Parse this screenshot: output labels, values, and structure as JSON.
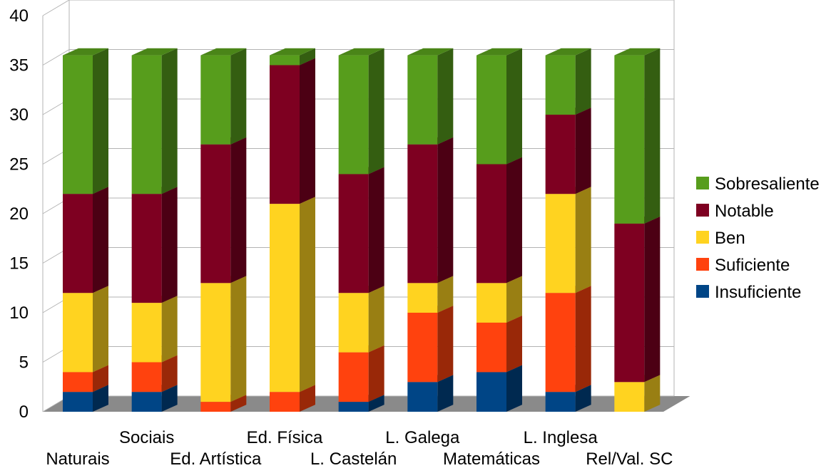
{
  "chart_data": {
    "type": "bar",
    "stacked": true,
    "three_d": true,
    "categories": [
      "Naturais",
      "Sociais",
      "Ed. Artística",
      "Ed. Física",
      "L. Castelán",
      "L. Galega",
      "Matemáticas",
      "L. Inglesa",
      "Rel/Val. SC"
    ],
    "series": [
      {
        "name": "Insuficiente",
        "color": "#004586",
        "values": [
          2,
          2,
          0,
          0,
          1,
          3,
          4,
          2,
          0
        ]
      },
      {
        "name": "Suficiente",
        "color": "#ff420e",
        "values": [
          2,
          3,
          1,
          2,
          5,
          7,
          5,
          10,
          0
        ]
      },
      {
        "name": "Ben",
        "color": "#ffd320",
        "values": [
          8,
          6,
          12,
          19,
          6,
          3,
          4,
          10,
          3
        ]
      },
      {
        "name": "Notable",
        "color": "#7e0021",
        "values": [
          10,
          11,
          14,
          14,
          12,
          14,
          12,
          8,
          16
        ]
      },
      {
        "name": "Sobresaliente",
        "color": "#579d1c",
        "values": [
          14,
          14,
          9,
          1,
          12,
          9,
          11,
          6,
          17
        ]
      }
    ],
    "ylim": [
      0,
      40
    ],
    "yticks": [
      0,
      5,
      10,
      15,
      20,
      25,
      30,
      35,
      40
    ],
    "grid": true,
    "legend_position": "right"
  }
}
